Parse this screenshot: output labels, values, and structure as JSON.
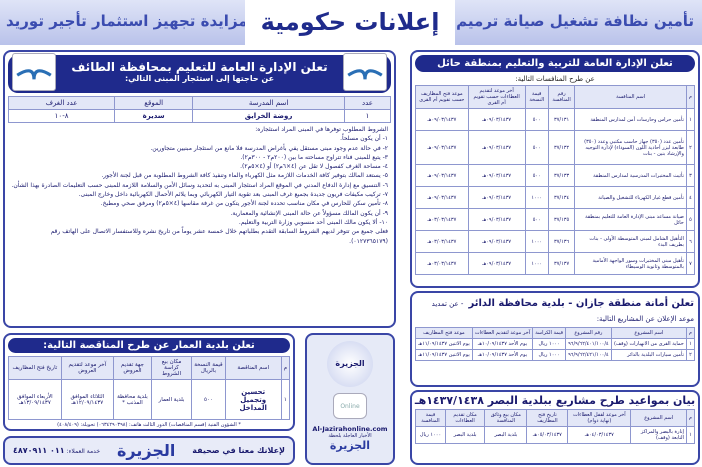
{
  "header": {
    "right_text": "تأمين نظافة تشغيل صيانة ترميم تأهيل",
    "left_text": "نقل مزايدة تجهيز استثمار تأجير توريد",
    "title": "إعلانات حكومية"
  },
  "taif": {
    "title": "تعلن الإدارة العامة للتعليم بمحافظة الطائف",
    "subtitle": "عن حاجتها إلى استئجار المبنى التالي:",
    "headers": [
      "عدد",
      "اسم المدرسة",
      "الموقع",
      "عدد الغرف"
    ],
    "row": [
      "١",
      "روضة الخرايق",
      "سديرة",
      "٨-١٠"
    ],
    "conditions": [
      "الشروط المطلوب توفرها في المبنى المراد استئجاره:",
      "١- أن يكون مسلحاً.",
      "٢- في حالة عدم وجود مبنى مستقل يفي بأغراض المدرسة فلا مانع من استئجار مبنيين متجاورين.",
      "٣- يتبع للمبنى فناء تتراوح مساحته ما بين (٢٠٠م٢ - ٣٠٠م٢).",
      "٤- مساحة الغرف كفصول لا تقل عن (٤×٦م٢) أو (٤×٥م٢).",
      "٥- يستعد المالك بتوفير كافة الخدمات اللازمة مثل الكهرباء والماء وتنفيذ كافة الشروط المطلوبة من قبل لجنة الأجور.",
      "٦- التنسيق مع إدارة الدفاع المدني في الموقع المراد استئجار المبنى به لتحديد وسائل الأمن والسلامة اللازمة للمبنى حسب التعليمات الصادرة بهذا الشأن.",
      "٧- تركيب مكيفات فريون جديدة بجميع غرف المبنى بعد تقوية التيار الكهربائي وبما يلائم الأحمال الكهربائية داخل وخارج المبنى.",
      "٨- تأمين سكن للحارس في مكان مناسب تحدده لجنة الأجور يتكون من غرفة مقاسها (٤×٥م٢) ومرفق صحي ومطبخ.",
      "٩- أن يكون المالك مسؤولاً عن حالة المبنى الإنشائية والمعمارية.",
      "١٠- ألا يكون مالك المبنى أحد منسوبي وزارة التربية والتعليم.",
      "فعلى جميع من تتوفر لديهم الشروط السابقة التقدم بطلباتهم خلال خمسة عشر يوماً من تاريخ نشره وللاستفسار الاتصال على الهاتف رقم (٠١٢٧٣٦٥١٧٩)."
    ]
  },
  "hail": {
    "title": "تعلن الإدارة العامة للتربية والتعليم بمنطقة حائل",
    "subtitle": "عن طرح المنافسات التالية:",
    "headers": [
      "م",
      "اسم المنافسة",
      "رقم المنافسة",
      "قيمة النسخة",
      "آخر موعد لتقديم العطاءات حسب تقويم أم القرى",
      "موعد فتح المظاريف حسب تقويم أم القرى"
    ],
    "rows": [
      [
        "١",
        "تأمين حراس وحارسات أمن لمدارس المنطقة",
        "٣٧/١٣١",
        "٥٠٠",
        "٠٩/٠٣/١٤٣٧هـ",
        "٠٩/٠٣/١٤٣٧هـ"
      ],
      [
        "٢",
        "تأمين عدد (٣٥٠) جهاز حاسب مكتبي وعدد (٣٥٠) طابعة ليزر أحادية اللون (السوداء) لإدارة التوجيه والإرشاد بنين - بنات",
        "٣٧/١٣٢",
        "٥٠٠",
        "٠٩/٠٣/١٤٣٧هـ",
        "٠٩/٠٣/١٤٣٧هـ"
      ],
      [
        "٣",
        "تأثيث المختبرات المدرسية لمدارس المنطقة",
        "٣٧/١٣٣",
        "٥٠٠",
        "٠٩/٠٣/١٤٣٧هـ",
        "٠٩/٠٣/١٤٣٧هـ"
      ],
      [
        "٤",
        "تأمين قطع غيار الكهرباء للتشغيل والصيانة",
        "٣٧/١٣٤",
        "١٠٠٠",
        "٠٩/٠٣/١٤٣٧هـ",
        "٠٩/٠٣/١٤٣٧هـ"
      ],
      [
        "٥",
        "صيانة مساعد مبنى الإدارة العامة للتعليم بمنطقة حائل",
        "٣٧/١٣٥",
        "٥٠٠",
        "٠٩/٠٣/١٤٣٧هـ",
        "٠٣/٠٣/١٤٣٧هـ"
      ],
      [
        "٦",
        "التأهيل الشامل لمبنى المتوسطة الأولى - بنات بطريف البدء",
        "٣٧/١٣٦",
        "١٠٠٠",
        "٠٩/٠٣/١٤٣٧هـ",
        "٠٣/٠٣/١٤٣٧هـ"
      ],
      [
        "٧",
        "تأهيل مبنى المختبرات وسور الواجهة الأمامية بالمتوسطة وثانوية الوسيطاء",
        "٣٧/١٣٧",
        "١٠٠٠",
        "٠٩/٠٣/١٤٣٧هـ",
        "٠٣/٠٣/١٤٣٧هـ"
      ]
    ]
  },
  "jazan": {
    "title": "تعلن أمانة منطقة جازان - بلدية محافظة الدائر",
    "subtitle": "- عن تمديد موعد الإعلان عن المشاريع التالية:",
    "headers": [
      "م",
      "اسم المشروع",
      "رقم المشروع",
      "قيمة الكراسة",
      "آخر موعد لتقديم العطاءات",
      "موعد فتح المظاريف"
    ],
    "rows": [
      [
        "١",
        "حماية القرى من الانهيارات (وقف)",
        "٩٦/٩/٦٢/٤٠١/١٠٠/٤",
        "١٠٠٠ ريال",
        "يوم الأحد ١٠/٠٩/١٤٣٧هـ",
        "يوم الاثنين ١١/٠٩/١٤٣٧هـ"
      ],
      [
        "٢",
        "تأمين سيارات البلدية بالدائر",
        "٩٦/٩/٦٢/٤٢١/١٠٠/٤",
        "١٠٠٠ ريال",
        "يوم الأحد ١٠/٠٩/١٤٣٧هـ",
        "يوم الاثنين ١١/٠٩/١٤٣٧هـ"
      ]
    ]
  },
  "basr": {
    "title": "بيان بمواعيد طرح مشاريع ببلدية البصر ١٤٣٧/١٤٣٨هـ",
    "headers": [
      "م",
      "اسم المشروع",
      "آخر موعد لقفل العطاءات (نهاية دوام)",
      "تاريخ فتح المظاريف",
      "مكان بيع وثائق المنافسة",
      "مكان تقديم العطاءات",
      "قيمة المنافسة"
    ],
    "rows": [
      [
        "١",
        "إنارة بالبصر والمراكز التابعة (وقف)",
        "٠٤/٠٣/١٤٣٧هـ",
        "٠٥/٠٣/١٤٣٧هـ",
        "بلدية البصر",
        "بلدية البصر",
        "١٠٠٠ ريال"
      ]
    ]
  },
  "amar": {
    "title": "تعلن بلدية العمار عن طرح المناقصة التالية:",
    "headers": [
      "م",
      "اسم المناقصة",
      "قيمة النسخة بالريال",
      "مكان بيع كراسة الشروط",
      "جهة تقديم العروض",
      "آخر موعد لتقديم العروض",
      "تاريخ فتح المظاريف"
    ],
    "rows": [
      [
        "١",
        "تحسين وتجميل المداخل",
        "٥٠٠",
        "بلدية العمار",
        "بلدية محافظة المذنب *",
        "الثلاثاء الموافق ١٢/٠٩/١٤٣٧هـ",
        "الأربعاء الموافق ١٣/٠٩/١٤٣٧هـ"
      ]
    ],
    "note": "* الشؤون الفنية (قسم المناقصات) الدور الثالث هاتف: (٠٦٣٤٢٩٠٣٩٨) تحويلة: (٤٠٨/٤٠٩)"
  },
  "online": {
    "brand": "الجزيرة",
    "badge": "Online",
    "url": "Al-Jazirahonline.com",
    "tagline": "الأخبار العاجلة بلحظة"
  },
  "jazirah_ad": {
    "text": "لإعلانك معنا في صحيفة",
    "brand": "الجزيرة",
    "service": "خدمة العملاء:",
    "phone": "٠١١ ٤٨٧٠٩١١"
  },
  "colors": {
    "primary": "#1f2a8c",
    "header_bg": "#c3cbee"
  }
}
